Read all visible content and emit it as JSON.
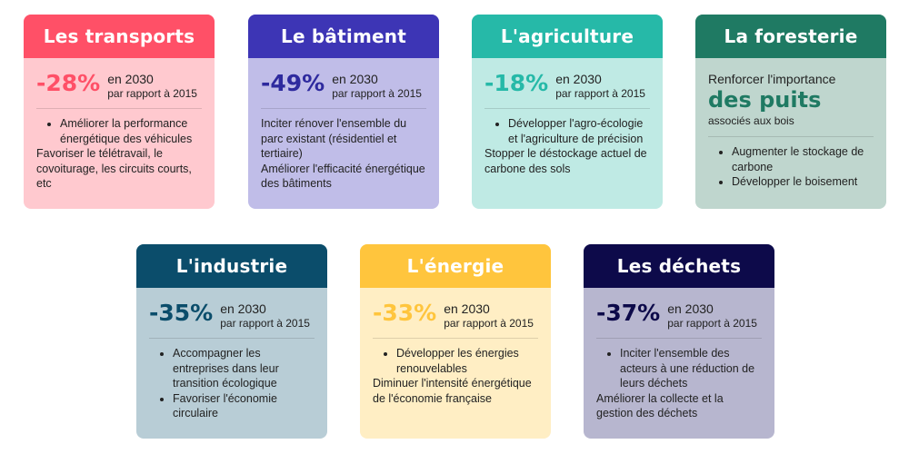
{
  "colors": {
    "transports_head": "#ff5067",
    "transports_body": "#ffc9cf",
    "transports_pct": "#ff5067",
    "batiment_head": "#3d35b5",
    "batiment_body": "#c0bde8",
    "batiment_pct": "#2e2a9e",
    "agriculture_head": "#26b9a8",
    "agriculture_body": "#bfeae4",
    "agriculture_pct": "#26b9a8",
    "foresterie_head": "#1f7a63",
    "foresterie_body": "#bfd6ce",
    "foresterie_pct": "#1f7a63",
    "industrie_head": "#0b4d6b",
    "industrie_body": "#b8cdd6",
    "industrie_pct": "#0b4d6b",
    "energie_head": "#ffc53d",
    "energie_body": "#ffeec4",
    "energie_pct": "#ffc53d",
    "dechets_head": "#0d0a4a",
    "dechets_body": "#b7b6cf",
    "dechets_pct": "#0d0a4a"
  },
  "transports": {
    "title": "Les transports",
    "pct": "-28%",
    "year": "en 2030",
    "ref": "par rapport à 2015",
    "bullets": [
      "Améliorer la performance énergétique des véhicules"
    ],
    "plain": "Favoriser le télétravail, le covoiturage, les circuits courts, etc"
  },
  "batiment": {
    "title": "Le bâtiment",
    "pct": "-49%",
    "year": "en 2030",
    "ref": "par rapport à 2015",
    "plain1": "Inciter rénover l'ensemble du parc existant (résidentiel et tertiaire)",
    "plain2": "Améliorer l'efficacité énergétique des bâtiments"
  },
  "agriculture": {
    "title": "L'agriculture",
    "pct": "-18%",
    "year": "en 2030",
    "ref": "par rapport à 2015",
    "bullets": [
      "Développer l'agro-écologie et l'agriculture de précision"
    ],
    "plain": "Stopper le déstockage actuel de carbone des sols"
  },
  "foresterie": {
    "title": "La foresterie",
    "intro": "Renforcer l'importance",
    "big": "des puits",
    "sub": "associés aux bois",
    "bullets": [
      "Augmenter le stockage de carbone",
      "Développer le boisement"
    ]
  },
  "industrie": {
    "title": "L'industrie",
    "pct": "-35%",
    "year": "en 2030",
    "ref": "par rapport à 2015",
    "bullets": [
      "Accompagner les entreprises dans leur transition écologique",
      "Favoriser l'économie circulaire"
    ]
  },
  "energie": {
    "title": "L'énergie",
    "pct": "-33%",
    "year": "en 2030",
    "ref": "par rapport à 2015",
    "bullets": [
      "Développer les énergies renouvelables"
    ],
    "plain": "Diminuer l'intensité énergétique de l'économie française"
  },
  "dechets": {
    "title": "Les déchets",
    "pct": "-37%",
    "year": "en 2030",
    "ref": "par rapport à 2015",
    "bullets": [
      "Inciter l'ensemble des acteurs à une réduction de leurs déchets"
    ],
    "plain": "Améliorer la collecte et la gestion des déchets"
  }
}
